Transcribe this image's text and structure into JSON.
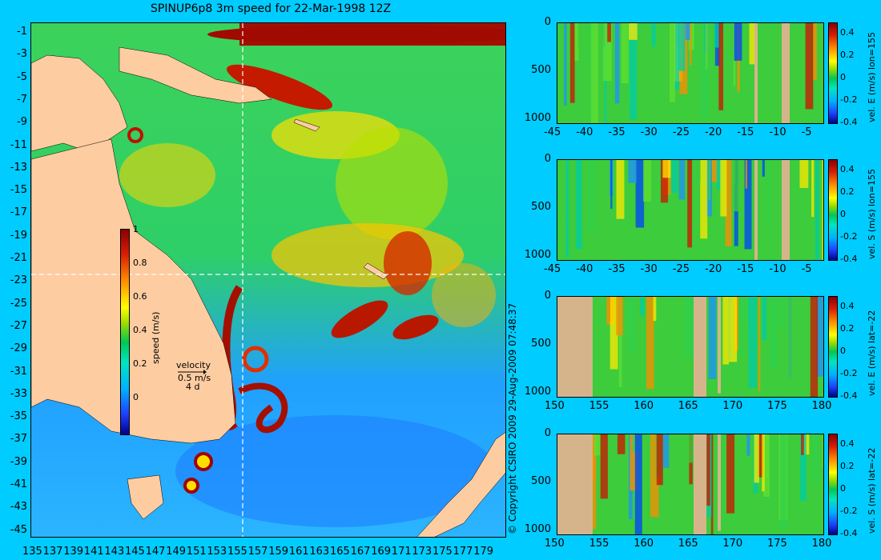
{
  "title": "SPINUP6p8 3m speed for 22-Mar-1998 12Z",
  "map": {
    "lat_labels": [
      "-1",
      "-3",
      "-5",
      "-7",
      "-9",
      "-11",
      "-13",
      "-15",
      "-17",
      "-19",
      "-21",
      "-23",
      "-25",
      "-27",
      "-29",
      "-31",
      "-33",
      "-35",
      "-37",
      "-39",
      "-41",
      "-43",
      "-45"
    ],
    "lon_labels": [
      "135",
      "137",
      "139",
      "141",
      "143",
      "145",
      "147",
      "149",
      "151",
      "153",
      "155",
      "157",
      "159",
      "161",
      "163",
      "165",
      "167",
      "169",
      "171",
      "173",
      "175",
      "177",
      "179"
    ],
    "colorbar": {
      "label": "speed (m/s)",
      "ticks": [
        "1",
        "0.8",
        "0.6",
        "0.4",
        "0.2",
        "0"
      ]
    },
    "velocity_key": {
      "title": "velocity",
      "speed": "0.5 m/s",
      "duration": "4 d"
    },
    "section_lon": 155,
    "section_lat": -22
  },
  "copyright": "© Copyright CSIRO 2009  29-Aug-2009 07:48:37",
  "panels": [
    {
      "label": "vel. E (m/s) lon=155",
      "x_ticks": [
        "-45",
        "-40",
        "-35",
        "-30",
        "-25",
        "-20",
        "-15",
        "-10",
        "-5"
      ],
      "y_ticks": [
        "0",
        "500",
        "1000"
      ],
      "c_ticks": [
        "0.4",
        "0.2",
        "0",
        "-0.2",
        "-0.4"
      ]
    },
    {
      "label": "vel. S (m/s) lon=155",
      "x_ticks": [
        "-45",
        "-40",
        "-35",
        "-30",
        "-25",
        "-20",
        "-15",
        "-10",
        "-5"
      ],
      "y_ticks": [
        "0",
        "500",
        "1000"
      ],
      "c_ticks": [
        "0.4",
        "0.2",
        "0",
        "-0.2",
        "-0.4"
      ]
    },
    {
      "label": "vel. E (m/s) lat=-22",
      "x_ticks": [
        "150",
        "155",
        "160",
        "165",
        "170",
        "175",
        "180"
      ],
      "y_ticks": [
        "0",
        "500",
        "1000"
      ],
      "c_ticks": [
        "0.4",
        "0.2",
        "0",
        "-0.2",
        "-0.4"
      ]
    },
    {
      "label": "vel. S (m/s) lat=-22",
      "x_ticks": [
        "150",
        "155",
        "160",
        "165",
        "170",
        "175",
        "180"
      ],
      "y_ticks": [
        "0",
        "500",
        "1000"
      ],
      "c_ticks": [
        "0.4",
        "0.2",
        "0",
        "-0.2",
        "-0.4"
      ]
    }
  ]
}
